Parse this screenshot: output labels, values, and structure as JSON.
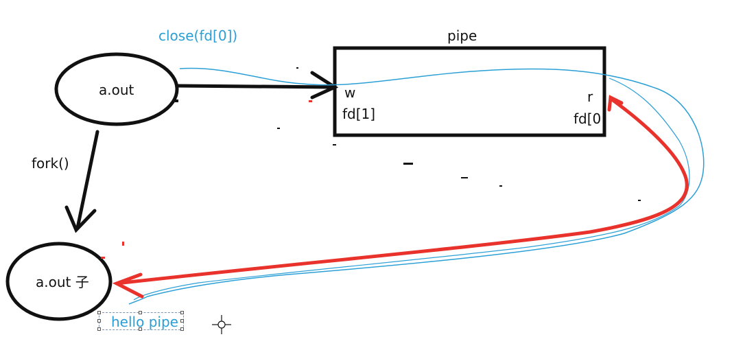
{
  "process_parent": {
    "label": "a.out"
  },
  "process_child": {
    "label": "a.out 子"
  },
  "pipe": {
    "title": "pipe",
    "write_end": "w",
    "write_fd": "fd[1]",
    "read_end": "r",
    "read_fd": "fd[0"
  },
  "annotations": {
    "close": "close(fd[0])",
    "fork": "fork()",
    "text_box": "hello pipe"
  },
  "colors": {
    "ink": "#111111",
    "annotation": "#2a9fd6",
    "data_flow": "#e8322b"
  },
  "icons": [
    "crosshair-cursor-icon"
  ]
}
